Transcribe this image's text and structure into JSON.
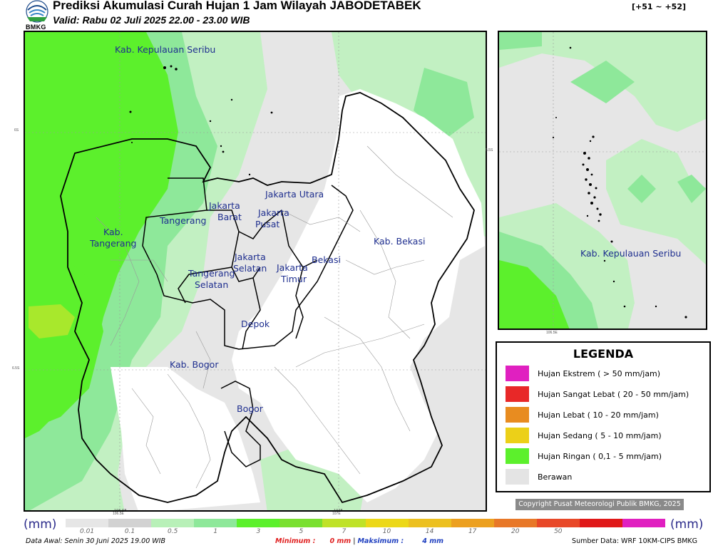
{
  "header": {
    "title": "Prediksi Akumulasi Curah Hujan 1 Jam Wilayah JABODETABEK",
    "valid": "Valid: Rabu 02 Juli 2025 22.00 - 23.00 WIB",
    "range_label": "[+51 ~ +52]",
    "logo_text": "BMKG"
  },
  "map": {
    "region_labels": [
      "Kab. Kepulauan Seribu",
      "Jakarta Utara",
      "Jakarta",
      "Barat",
      "Jakarta",
      "Pusat",
      "Tangerang",
      "Kab.",
      "Tangerang",
      "Jakarta",
      "Selatan",
      "Bekasi",
      "Jakarta",
      "Timur",
      "Kab. Bekasi",
      "Tangerang",
      "Selatan",
      "Depok",
      "Kab. Bogor",
      "Bogor"
    ],
    "lat_ticks": [
      "6S",
      "6.5S"
    ],
    "lon_ticks": [
      "106.5E",
      "107E"
    ],
    "inset_labels": [
      "Kab. Kepulauan Seribu"
    ],
    "inset_lat_tick": "5.5S",
    "inset_lon_tick": "106.5E"
  },
  "colors": {
    "cloudy": "#e2e2e2",
    "light_rain_1": "#c2f0c2",
    "light_rain_2": "#8ee89a",
    "light_rain_3": "#5cf02c",
    "light_rain_4": "#a0e830"
  },
  "legend": {
    "title": "LEGENDA",
    "items": [
      {
        "label": "Hujan Ekstrem ( > 50 mm/jam)",
        "color": "#e020c0"
      },
      {
        "label": "Hujan Sangat Lebat ( 20 - 50 mm/jam)",
        "color": "#e82828"
      },
      {
        "label": "Hujan Lebat ( 10 - 20 mm/jam)",
        "color": "#e88c20"
      },
      {
        "label": "Hujan Sedang ( 5 - 10 mm/jam)",
        "color": "#ecd018"
      },
      {
        "label": "Hujan Ringan ( 0,1 - 5 mm/jam)",
        "color": "#5cf02c"
      },
      {
        "label": "Berawan",
        "color": "#e4e4e4"
      }
    ]
  },
  "copyright": "Copyright Pusat Meteorologi Publik BMKG, 2025",
  "colorbar": {
    "unit_left": "(mm)",
    "unit_right": "(mm)",
    "ticks": [
      "0.01",
      "0.1",
      "0.5",
      "1",
      "3",
      "5",
      "7",
      "10",
      "14",
      "17",
      "20",
      "50"
    ],
    "colors": [
      "#e6e6e6",
      "#d2d2d2",
      "#b8f0b8",
      "#8ee89a",
      "#5cf02c",
      "#7ae030",
      "#bfe228",
      "#ecd818",
      "#ecc020",
      "#eca020",
      "#e87828",
      "#e84828",
      "#e01818",
      "#e020c0"
    ]
  },
  "footer": {
    "data_awal": "Data Awal: Senin 30 Juni 2025 19.00 WIB",
    "minimum_label": "Minimum :",
    "minimum_value": "0 mm",
    "separator": "|",
    "maksimum_label": "Maksimum :",
    "maksimum_value": "4 mm",
    "source": "Sumber Data: WRF 10KM-CIPS BMKG"
  }
}
